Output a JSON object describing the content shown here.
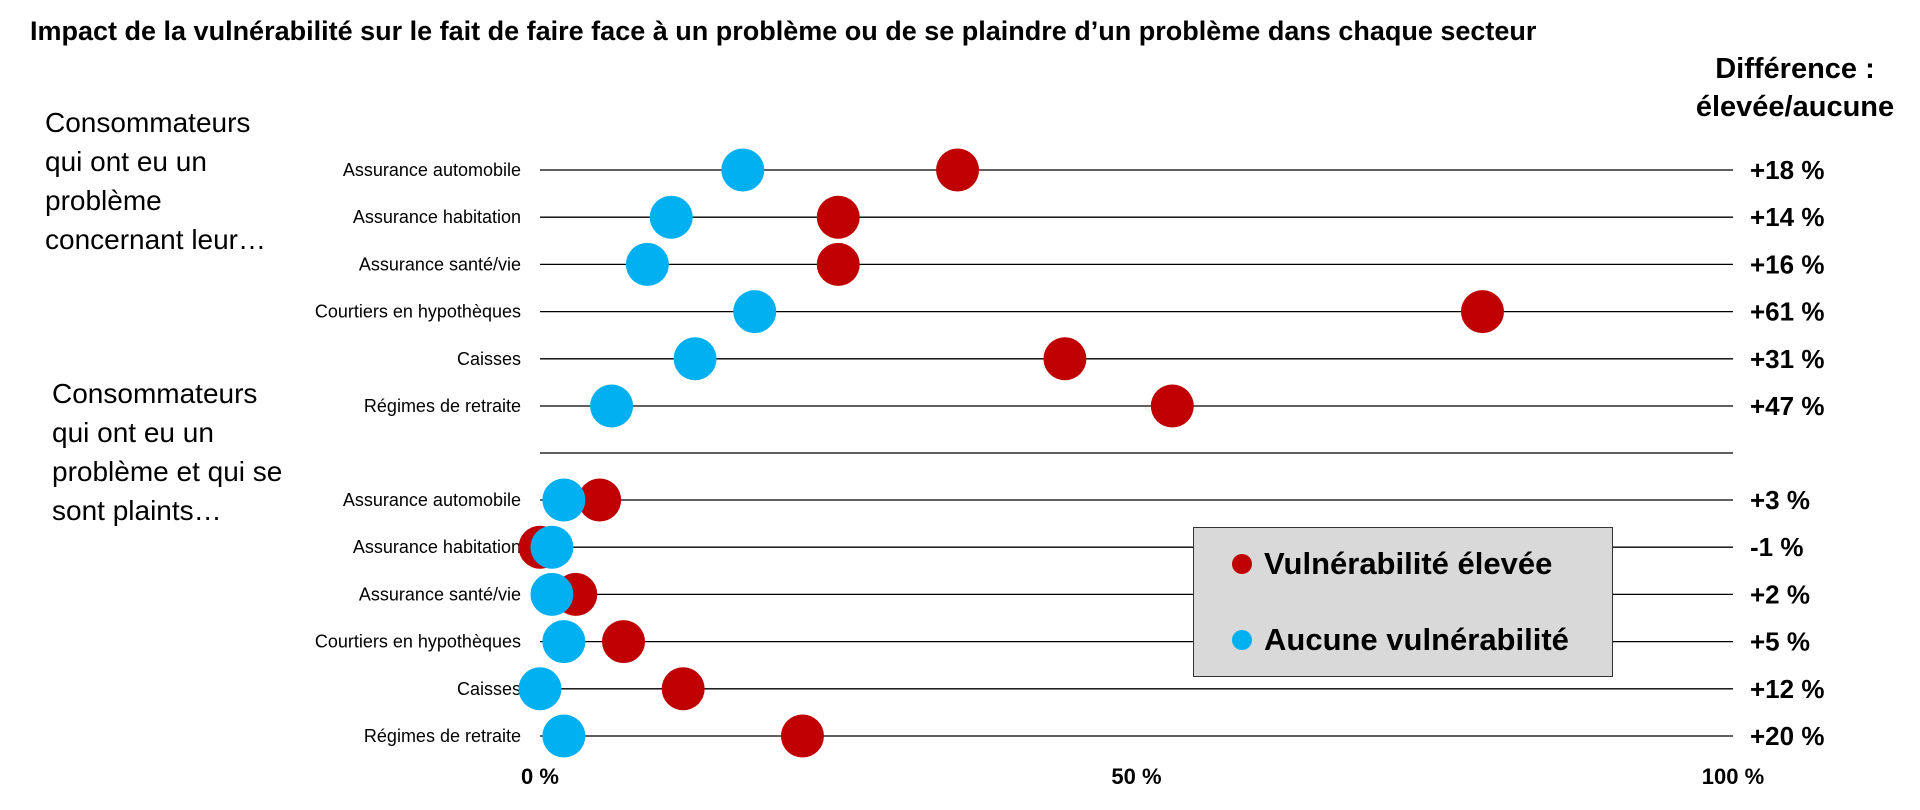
{
  "title": "Impact de la vulnérabilité sur le fait de faire face à un problème ou de se plaindre d’un problème dans chaque secteur",
  "diff_header": {
    "line1": "Différence :",
    "line2": "élevée/aucune"
  },
  "groups": [
    {
      "label": "Consommateurs qui ont eu un problème concernant leur…"
    },
    {
      "label": "Consommateurs qui ont eu un problème et qui se sont plaints…"
    }
  ],
  "legend": [
    {
      "label": "Vulnérabilité élevée",
      "color": "#c00000"
    },
    {
      "label": "Aucune vulnérabilité",
      "color": "#00b0f0"
    }
  ],
  "chart_data": {
    "type": "dot",
    "xlim": [
      0,
      100
    ],
    "x_ticks": [
      {
        "value": 0,
        "label": "0 %"
      },
      {
        "value": 50,
        "label": "50 %"
      },
      {
        "value": 100,
        "label": "100 %"
      }
    ],
    "colors": {
      "high": "#c00000",
      "none": "#00b0f0"
    },
    "rows": [
      {
        "group": 0,
        "category": "Assurance automobile",
        "high": 35,
        "none": 17,
        "diff": "+18 %"
      },
      {
        "group": 0,
        "category": "Assurance habitation",
        "high": 25,
        "none": 11,
        "diff": "+14 %"
      },
      {
        "group": 0,
        "category": "Assurance santé/vie",
        "high": 25,
        "none": 9,
        "diff": "+16 %"
      },
      {
        "group": 0,
        "category": "Courtiers en hypothèques",
        "high": 79,
        "none": 18,
        "diff": "+61 %"
      },
      {
        "group": 0,
        "category": "Caisses",
        "high": 44,
        "none": 13,
        "diff": "+31 %"
      },
      {
        "group": 0,
        "category": "Régimes de retraite",
        "high": 53,
        "none": 6,
        "diff": "+47 %"
      },
      {
        "group": 1,
        "category": "Assurance automobile",
        "high": 5,
        "none": 2,
        "diff": "+3 %"
      },
      {
        "group": 1,
        "category": "Assurance habitation",
        "high": 0,
        "none": 1,
        "diff": "-1 %"
      },
      {
        "group": 1,
        "category": "Assurance santé/vie",
        "high": 3,
        "none": 1,
        "diff": "+2 %"
      },
      {
        "group": 1,
        "category": "Courtiers en hypothèques",
        "high": 7,
        "none": 2,
        "diff": "+5 %"
      },
      {
        "group": 1,
        "category": "Caisses",
        "high": 12,
        "none": 0,
        "diff": "+12 %"
      },
      {
        "group": 1,
        "category": "Régimes de retraite",
        "high": 22,
        "none": 2,
        "diff": "+20 %"
      }
    ]
  }
}
